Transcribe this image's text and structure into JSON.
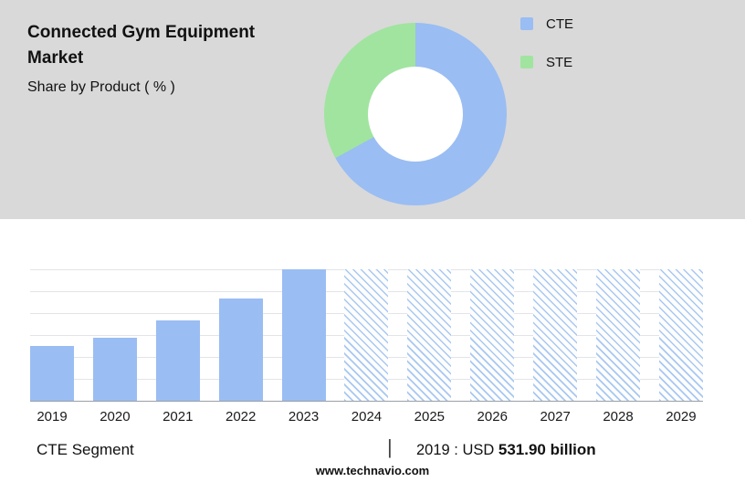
{
  "header": {
    "title": "Connected Gym Equipment Market",
    "subtitle": "Share by Product ( % )"
  },
  "colors": {
    "cte": "#9abdf3",
    "ste": "#a0e4a0",
    "panel_bg": "#d9d9d9",
    "hatch": "#a8c8f2",
    "grid": "#e2e4e8",
    "baseline": "#9aa0a6"
  },
  "chart_data": [
    {
      "type": "pie",
      "donut": true,
      "title": "Share by Product ( % )",
      "labels": [
        "CTE",
        "STE"
      ],
      "values": [
        67,
        33
      ],
      "colors": [
        "#9abdf3",
        "#a0e4a0"
      ],
      "legend_position": "right"
    },
    {
      "type": "bar",
      "categories": [
        "2019",
        "2020",
        "2021",
        "2022",
        "2023",
        "2024",
        "2025",
        "2026",
        "2027",
        "2028",
        "2029"
      ],
      "values": [
        42,
        48,
        61,
        78,
        100,
        100,
        100,
        100,
        100,
        100,
        100
      ],
      "forecast_start_index": 5,
      "forecast_style": "diagonal-hatch",
      "ylim": [
        0,
        100
      ],
      "grid": true,
      "xlabel": "",
      "ylabel": ""
    }
  ],
  "footer": {
    "segment_label": "CTE Segment",
    "separator": "|",
    "value_prefix": "2019 : USD",
    "value_bold": "531.90 billion",
    "website": "www.technavio.com"
  }
}
